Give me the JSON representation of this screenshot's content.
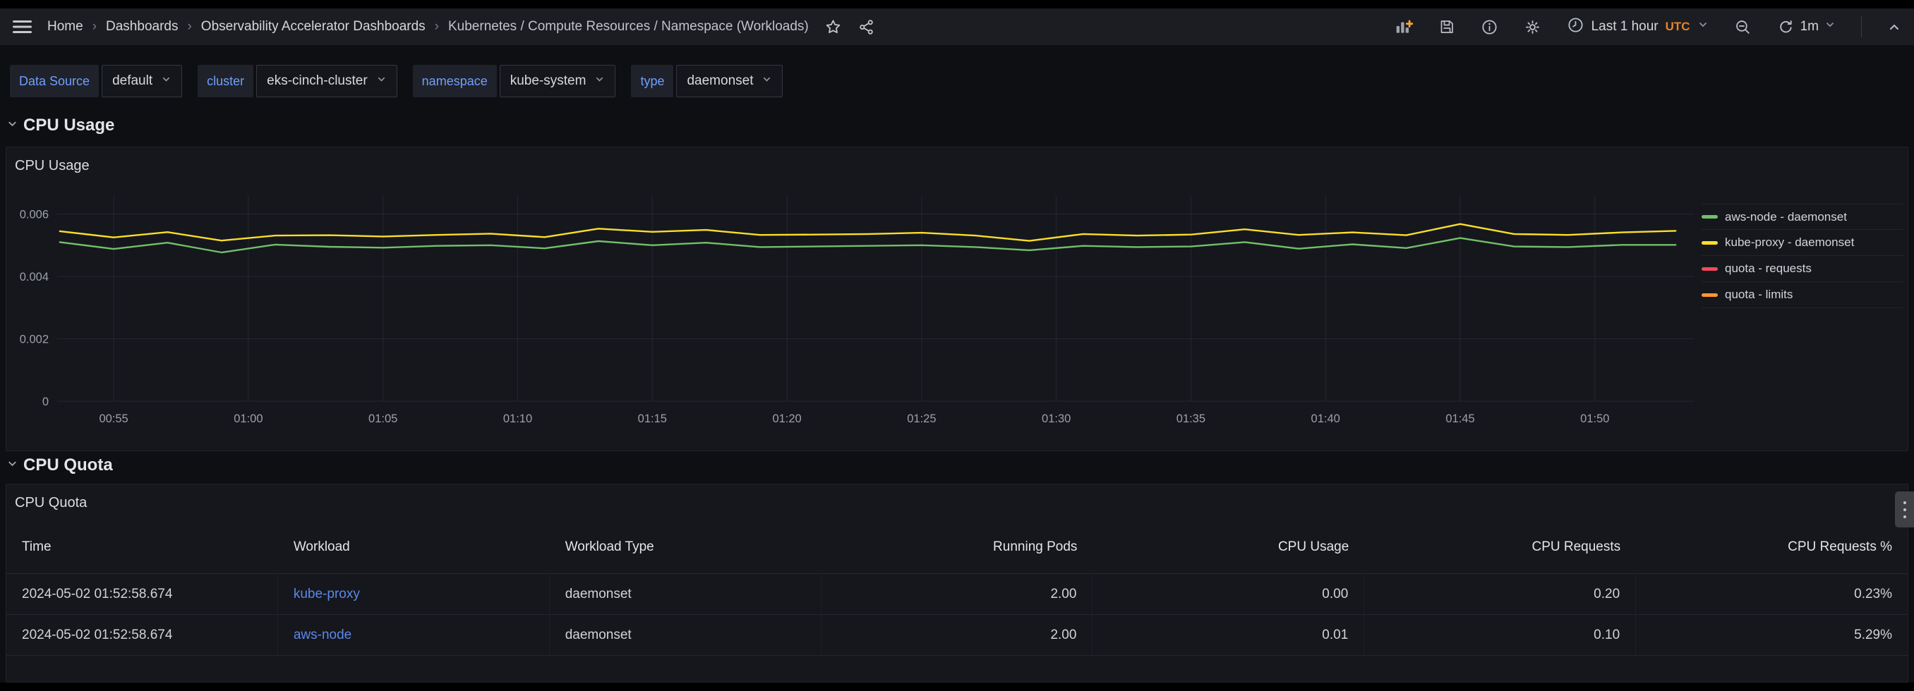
{
  "topnav": {
    "breadcrumbs": [
      {
        "label": "Home"
      },
      {
        "label": "Dashboards"
      },
      {
        "label": "Observability Accelerator Dashboards"
      },
      {
        "label": "Kubernetes / Compute Resources / Namespace (Workloads)"
      }
    ],
    "separator": "›",
    "time_picker": {
      "label": "Last 1 hour",
      "timezone": "UTC"
    },
    "refresh_interval": "1m"
  },
  "variables": {
    "items": [
      {
        "label": "Data Source",
        "value": "default"
      },
      {
        "label": "cluster",
        "value": "eks-cinch-cluster"
      },
      {
        "label": "namespace",
        "value": "kube-system"
      },
      {
        "label": "type",
        "value": "daemonset"
      }
    ]
  },
  "sections": {
    "cpu_usage": "CPU Usage",
    "cpu_quota": "CPU Quota"
  },
  "panels": {
    "cpu_usage": {
      "title": "CPU Usage"
    },
    "cpu_quota": {
      "title": "CPU Quota"
    }
  },
  "chart_data": {
    "type": "line",
    "title": "CPU Usage",
    "xlabel": "",
    "ylabel": "",
    "ylim": [
      0,
      0.0066
    ],
    "yticks": [
      0,
      0.002,
      0.004,
      0.006
    ],
    "ytick_labels": [
      "0",
      "0.002",
      "0.004",
      "0.006"
    ],
    "x_minutes": [
      53,
      55,
      57,
      59,
      61,
      63,
      65,
      67,
      69,
      71,
      73,
      75,
      77,
      79,
      81,
      83,
      85,
      87,
      89,
      91,
      93,
      95,
      97,
      99,
      101,
      103,
      105,
      107,
      109,
      111,
      113
    ],
    "x_tick_minutes": [
      55,
      60,
      65,
      70,
      75,
      80,
      85,
      90,
      95,
      100,
      105,
      110
    ],
    "x_tick_labels": [
      "00:55",
      "01:00",
      "01:05",
      "01:10",
      "01:15",
      "01:20",
      "01:25",
      "01:30",
      "01:35",
      "01:40",
      "01:45",
      "01:50"
    ],
    "grid": true,
    "legend_position": "right",
    "series": [
      {
        "name": "aws-node - daemonset",
        "color": "#73BF69",
        "values": [
          0.0051,
          0.00488,
          0.00508,
          0.00477,
          0.00502,
          0.00495,
          0.00492,
          0.00498,
          0.005,
          0.0049,
          0.00513,
          0.005,
          0.00508,
          0.00494,
          0.00496,
          0.00498,
          0.005,
          0.00494,
          0.00484,
          0.00498,
          0.00494,
          0.00496,
          0.0051,
          0.00489,
          0.00503,
          0.00491,
          0.00523,
          0.00496,
          0.00494,
          0.00501,
          0.00501
        ]
      },
      {
        "name": "kube-proxy - daemonset",
        "color": "#FADE2A",
        "values": [
          0.00545,
          0.00525,
          0.00542,
          0.00515,
          0.00531,
          0.00532,
          0.00528,
          0.00533,
          0.00537,
          0.00526,
          0.00553,
          0.00543,
          0.00549,
          0.00533,
          0.00534,
          0.00536,
          0.0054,
          0.00531,
          0.00514,
          0.00536,
          0.00531,
          0.00534,
          0.00551,
          0.00533,
          0.00541,
          0.00532,
          0.00568,
          0.00536,
          0.00533,
          0.00541,
          0.00546
        ]
      },
      {
        "name": "quota - requests",
        "color": "#F2495C",
        "values": []
      },
      {
        "name": "quota - limits",
        "color": "#FF9830",
        "values": []
      }
    ]
  },
  "table": {
    "columns": [
      {
        "key": "time",
        "label": "Time",
        "align": "left"
      },
      {
        "key": "workload",
        "label": "Workload",
        "align": "left",
        "link": true
      },
      {
        "key": "workload_type",
        "label": "Workload Type",
        "align": "left"
      },
      {
        "key": "running_pods",
        "label": "Running Pods",
        "align": "right"
      },
      {
        "key": "cpu_usage",
        "label": "CPU Usage",
        "align": "right"
      },
      {
        "key": "cpu_requests",
        "label": "CPU Requests",
        "align": "right"
      },
      {
        "key": "cpu_requests_pct",
        "label": "CPU Requests %",
        "align": "right"
      }
    ],
    "rows": [
      {
        "time": "2024-05-02 01:52:58.674",
        "workload": "kube-proxy",
        "workload_type": "daemonset",
        "running_pods": "2.00",
        "cpu_usage": "0.00",
        "cpu_requests": "0.20",
        "cpu_requests_pct": "0.23%"
      },
      {
        "time": "2024-05-02 01:52:58.674",
        "workload": "aws-node",
        "workload_type": "daemonset",
        "running_pods": "2.00",
        "cpu_usage": "0.01",
        "cpu_requests": "0.10",
        "cpu_requests_pct": "5.29%"
      }
    ]
  },
  "colors": {
    "variable_label_blue": "#6E9FFF",
    "table_link_blue": "#5D87E8",
    "utc_orange": "#E8842A",
    "series_green": "#73BF69",
    "series_yellow": "#FADE2A",
    "series_red": "#F2495C",
    "series_orange": "#FF9830"
  }
}
